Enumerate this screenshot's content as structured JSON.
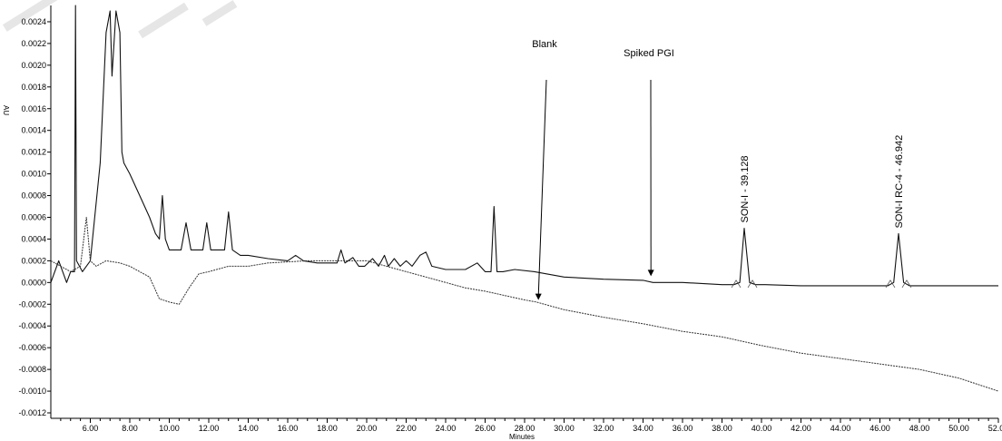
{
  "chart_data": {
    "type": "line",
    "title": "",
    "xlabel": "Minutes",
    "ylabel": "AU",
    "xlim": [
      4.0,
      52.0
    ],
    "ylim": [
      -0.00125,
      0.00255
    ],
    "x_ticks": [
      "6.00",
      "8.00",
      "10.00",
      "12.00",
      "14.00",
      "16.00",
      "18.00",
      "20.00",
      "22.00",
      "24.00",
      "26.00",
      "28.00",
      "30.00",
      "32.00",
      "34.00",
      "36.00",
      "38.00",
      "40.00",
      "42.00",
      "44.00",
      "46.00",
      "48.00",
      "50.00",
      "52.00"
    ],
    "y_ticks": [
      "0.0024",
      "0.0022",
      "0.0020",
      "0.0018",
      "0.0016",
      "0.0014",
      "0.0012",
      "0.0010",
      "0.0008",
      "0.0006",
      "0.0004",
      "0.0002",
      "0.0000",
      "-0.0002",
      "-0.0004",
      "-0.0006",
      "-0.0008",
      "-0.0010",
      "-0.0012"
    ],
    "series": [
      {
        "name": "Spiked PGI",
        "x": [
          4.0,
          4.4,
          4.8,
          5.0,
          5.2,
          5.25,
          5.3,
          5.6,
          6.0,
          6.5,
          6.8,
          7.0,
          7.1,
          7.3,
          7.5,
          7.6,
          7.7,
          8.0,
          8.5,
          9.0,
          9.3,
          9.5,
          9.65,
          9.8,
          10.0,
          10.3,
          10.6,
          10.85,
          11.1,
          11.4,
          11.7,
          11.9,
          12.1,
          12.4,
          12.8,
          13.0,
          13.2,
          13.6,
          14.0,
          15.0,
          16.0,
          16.4,
          16.8,
          17.5,
          18.0,
          18.5,
          18.7,
          18.9,
          19.3,
          19.6,
          19.9,
          20.3,
          20.6,
          20.9,
          21.1,
          21.4,
          21.7,
          22.0,
          22.3,
          22.7,
          23.0,
          23.3,
          24.0,
          25.0,
          25.6,
          26.0,
          26.3,
          26.45,
          26.6,
          26.9,
          27.5,
          28.5,
          30.0,
          32.0,
          34.0,
          34.5,
          36.0,
          38.0,
          38.6,
          38.9,
          39.128,
          39.4,
          39.7,
          40.2,
          42.0,
          44.0,
          46.0,
          46.4,
          46.7,
          46.942,
          47.2,
          47.5,
          48.0,
          50.0,
          52.0
        ],
        "y": [
          0.0,
          0.0002,
          0.0,
          0.0001,
          0.0001,
          0.00255,
          0.0002,
          0.0001,
          0.0002,
          0.0011,
          0.0023,
          0.0025,
          0.0019,
          0.0025,
          0.0023,
          0.0012,
          0.0011,
          0.001,
          0.0008,
          0.0006,
          0.00045,
          0.0004,
          0.0008,
          0.0004,
          0.0003,
          0.0003,
          0.0003,
          0.00055,
          0.0003,
          0.0003,
          0.0003,
          0.00055,
          0.0003,
          0.0003,
          0.0003,
          0.00065,
          0.0003,
          0.00025,
          0.00025,
          0.00022,
          0.0002,
          0.00025,
          0.0002,
          0.00018,
          0.00018,
          0.00018,
          0.0003,
          0.00018,
          0.00023,
          0.00015,
          0.00015,
          0.00022,
          0.00015,
          0.00025,
          0.00015,
          0.00022,
          0.00015,
          0.0002,
          0.00015,
          0.00025,
          0.00028,
          0.00015,
          0.00012,
          0.00012,
          0.00018,
          0.0001,
          0.0001,
          0.0007,
          0.0001,
          0.0001,
          0.00012,
          0.0001,
          5e-05,
          3e-05,
          2e-05,
          0.0,
          0.0,
          -2e-05,
          -2e-05,
          0.0,
          0.0005,
          0.0,
          -2e-05,
          -2e-05,
          -3e-05,
          -3e-05,
          -3e-05,
          -3e-05,
          0.0,
          0.00045,
          0.0,
          -3e-05,
          -3e-05,
          -3e-05,
          -3e-05
        ]
      },
      {
        "name": "Blank",
        "x": [
          4.0,
          4.5,
          5.0,
          5.5,
          5.8,
          6.0,
          6.3,
          6.8,
          7.5,
          8.0,
          8.5,
          9.0,
          9.5,
          10.0,
          10.5,
          11.0,
          11.5,
          12.0,
          13.0,
          14.0,
          15.0,
          16.0,
          17.0,
          18.0,
          19.0,
          20.0,
          21.0,
          22.0,
          23.0,
          24.0,
          25.0,
          26.0,
          27.0,
          28.0,
          28.6,
          29.0,
          30.0,
          32.0,
          34.0,
          36.0,
          38.0,
          40.0,
          42.0,
          44.0,
          46.0,
          48.0,
          50.0,
          51.0,
          52.0
        ],
        "y": [
          0.0002,
          0.00015,
          0.0001,
          0.00015,
          0.0006,
          0.0002,
          0.00015,
          0.0002,
          0.00018,
          0.00015,
          0.0001,
          5e-05,
          -0.00015,
          -0.00018,
          -0.0002,
          -5e-05,
          8e-05,
          0.0001,
          0.00015,
          0.00015,
          0.00018,
          0.00019,
          0.0002,
          0.0002,
          0.0002,
          0.0002,
          0.00015,
          0.0001,
          5e-05,
          0.0,
          -5e-05,
          -8e-05,
          -0.00012,
          -0.00016,
          -0.00018,
          -0.0002,
          -0.00025,
          -0.00032,
          -0.00038,
          -0.00045,
          -0.0005,
          -0.00058,
          -0.00065,
          -0.0007,
          -0.00075,
          -0.0008,
          -0.00088,
          -0.00094,
          -0.001
        ]
      }
    ],
    "annotations": [
      {
        "text": "Blank",
        "x": 28.7,
        "y": -0.00017
      },
      {
        "text": "Spiked PGI",
        "x": 34.4,
        "y": 5e-05
      }
    ],
    "peak_labels": [
      {
        "text": "SON-I - 39.128",
        "x": 39.128,
        "y": 0.0005
      },
      {
        "text": "SON-I RC-4 - 46.942",
        "x": 46.942,
        "y": 0.00045
      }
    ],
    "legend": "none",
    "grid": false
  }
}
